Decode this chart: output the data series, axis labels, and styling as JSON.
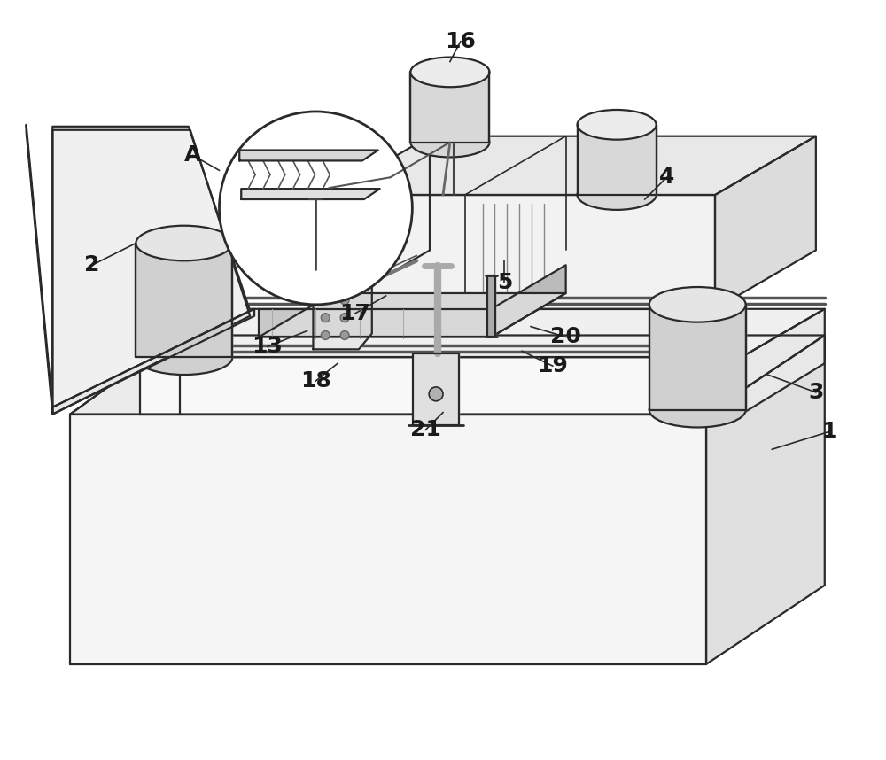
{
  "bg_color": "#ffffff",
  "line_color": "#2a2a2a",
  "line_width": 1.6,
  "label_color": "#1a1a1a",
  "figsize": [
    10.0,
    8.58
  ],
  "dpi": 100
}
